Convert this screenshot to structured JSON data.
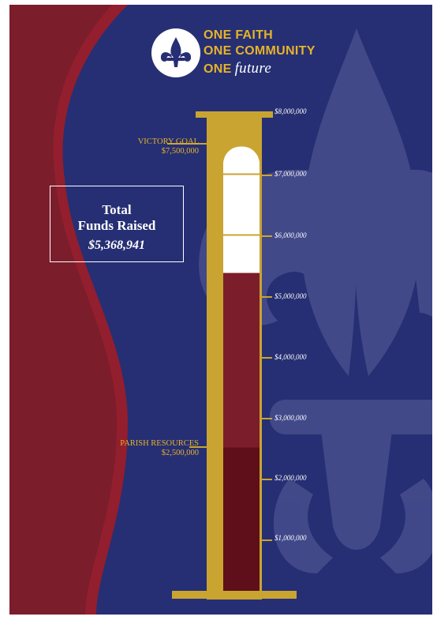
{
  "logo": {
    "line1": "ONE FAITH",
    "line2": "ONE COMMUNITY",
    "line3_prefix": "ONE",
    "line3_word": "future",
    "subtitle": "",
    "icon": "fleur-de-lis-icon"
  },
  "thermometer": {
    "victory_goal_label": "VICTORY GOAL",
    "victory_goal_amount": "$7,500,000",
    "parish_label": "PARISH RESOURCES",
    "parish_amount": "$2,500,000",
    "ticks": [
      "$8,000,000",
      "$7,000,000",
      "$6,000,000",
      "$5,000,000",
      "$4,000,000",
      "$3,000,000",
      "$2,000,000",
      "$1,000,000"
    ],
    "max_value": 8000000,
    "goal_value": 7500000,
    "raised_value": 5368941,
    "parish_value": 2500000
  },
  "total": {
    "title_line1": "Total",
    "title_line2": "Funds Raised",
    "amount": "$5,368,941"
  },
  "colors": {
    "navy": "#262f73",
    "crimson": "#7b1d2b",
    "dark_crimson": "#5e0f1a",
    "gold": "#c9a431",
    "white": "#ffffff"
  }
}
